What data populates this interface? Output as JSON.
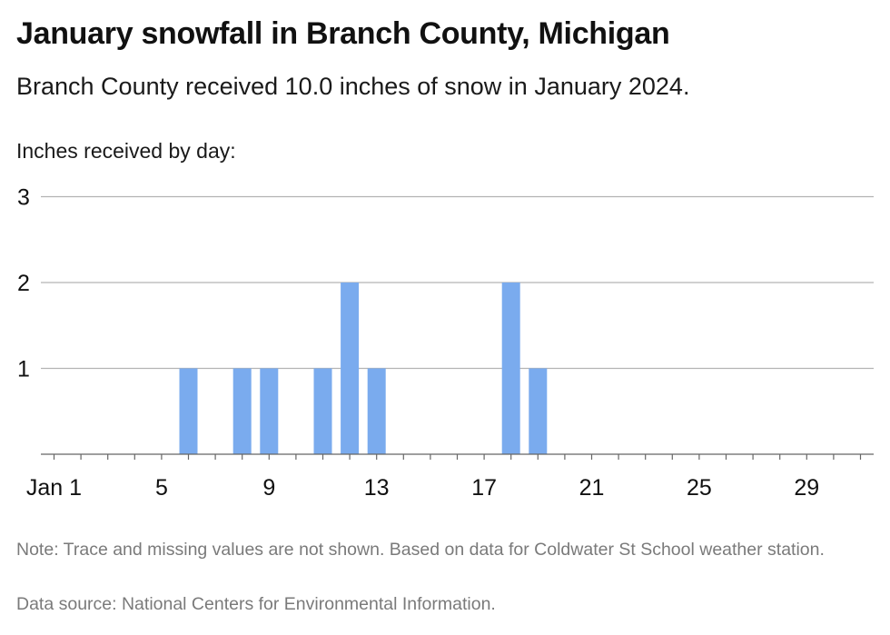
{
  "header": {
    "title": "January snowfall in Branch County, Michigan",
    "subtitle": "Branch County received 10.0 inches of snow in January 2024."
  },
  "chart_data": {
    "type": "bar",
    "ylabel": "Inches received by day:",
    "xlim": [
      1,
      31
    ],
    "ylim": [
      0,
      3
    ],
    "yticks": [
      1,
      2,
      3
    ],
    "xticks": [
      {
        "day": 1,
        "label": "Jan 1"
      },
      {
        "day": 5,
        "label": "5"
      },
      {
        "day": 9,
        "label": "9"
      },
      {
        "day": 13,
        "label": "13"
      },
      {
        "day": 17,
        "label": "17"
      },
      {
        "day": 21,
        "label": "21"
      },
      {
        "day": 25,
        "label": "25"
      },
      {
        "day": 29,
        "label": "29"
      }
    ],
    "x": [
      6,
      8,
      9,
      11,
      12,
      13,
      18,
      19
    ],
    "values": [
      1,
      1,
      1,
      1,
      2,
      1,
      2,
      1
    ],
    "bar_color": "#7aabee",
    "grid": true
  },
  "footer": {
    "note": "Note: Trace and missing values are not shown. Based on data for Coldwater St School weather station.",
    "source": "Data source: National Centers for Environmental Information."
  }
}
